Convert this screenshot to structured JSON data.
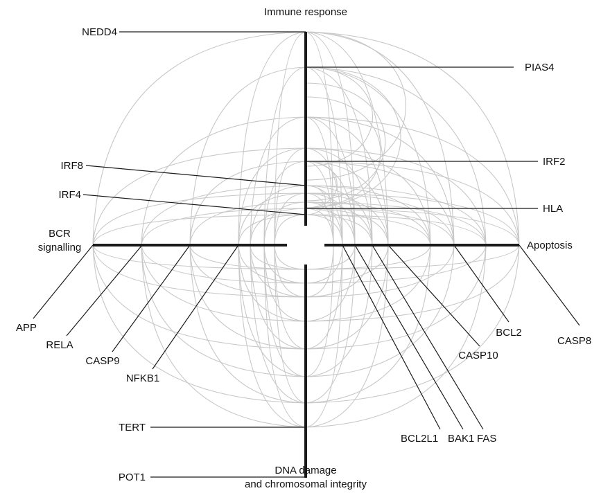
{
  "diagram": {
    "axes": [
      {
        "id": "immune",
        "label_lines": [
          "Immune response"
        ]
      },
      {
        "id": "apoptosis",
        "label_lines": [
          "Apoptosis"
        ]
      },
      {
        "id": "dna",
        "label_lines": [
          "DNA damage",
          "and chromosomal integrity"
        ]
      },
      {
        "id": "bcr",
        "label_lines": [
          "BCR",
          "signalling"
        ]
      }
    ],
    "genes": [
      {
        "id": "nedd4",
        "label": "NEDD4",
        "axis": "immune"
      },
      {
        "id": "pias4",
        "label": "PIAS4",
        "axis": "immune"
      },
      {
        "id": "irf8",
        "label": "IRF8",
        "axis": "immune"
      },
      {
        "id": "irf2",
        "label": "IRF2",
        "axis": "immune"
      },
      {
        "id": "irf4",
        "label": "IRF4",
        "axis": "immune"
      },
      {
        "id": "hla",
        "label": "HLA",
        "axis": "immune"
      },
      {
        "id": "casp8",
        "label": "CASP8",
        "axis": "apoptosis"
      },
      {
        "id": "bcl2",
        "label": "BCL2",
        "axis": "apoptosis"
      },
      {
        "id": "casp10",
        "label": "CASP10",
        "axis": "apoptosis"
      },
      {
        "id": "fas",
        "label": "FAS",
        "axis": "apoptosis"
      },
      {
        "id": "bak1",
        "label": "BAK1",
        "axis": "apoptosis"
      },
      {
        "id": "bcl2l1",
        "label": "BCL2L1",
        "axis": "apoptosis"
      },
      {
        "id": "tert",
        "label": "TERT",
        "axis": "dna"
      },
      {
        "id": "pot1",
        "label": "POT1",
        "axis": "dna"
      },
      {
        "id": "app",
        "label": "APP",
        "axis": "bcr"
      },
      {
        "id": "rela",
        "label": "RELA",
        "axis": "bcr"
      },
      {
        "id": "casp9",
        "label": "CASP9",
        "axis": "bcr"
      },
      {
        "id": "nfkb1",
        "label": "NFKB1",
        "axis": "bcr"
      }
    ],
    "colors": {
      "axis": "#1a1a1a",
      "edge": "#c8c8c8",
      "text": "#111111"
    }
  }
}
